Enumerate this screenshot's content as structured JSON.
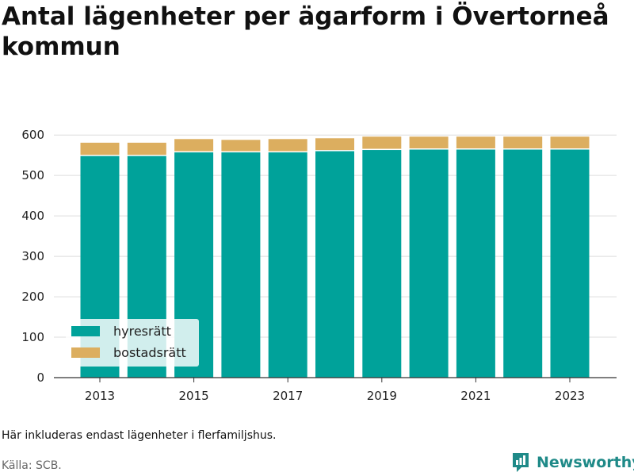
{
  "title": "Antal lägenheter per ägarform i Övertorneå kommun",
  "note": "Här inkluderas endast lägenheter i flerfamiljshus.",
  "source": "Källa: SCB.",
  "brand": {
    "name": "Newsworthy",
    "color": "#1f8a88"
  },
  "chart_data": {
    "type": "bar",
    "stacked": true,
    "categories": [
      "2013",
      "2014",
      "2015",
      "2016",
      "2017",
      "2018",
      "2019",
      "2020",
      "2021",
      "2022",
      "2023"
    ],
    "x_tick_labels": [
      "2013",
      "2015",
      "2017",
      "2019",
      "2021",
      "2023"
    ],
    "series": [
      {
        "name": "hyresrätt",
        "color": "#00a29a",
        "values": [
          548,
          548,
          557,
          557,
          557,
          560,
          563,
          564,
          564,
          564,
          564
        ]
      },
      {
        "name": "bostadsrätt",
        "color": "#dcae5f",
        "values": [
          33,
          33,
          33,
          31,
          33,
          32,
          33,
          32,
          32,
          32,
          32
        ]
      }
    ],
    "ylim": [
      0,
      620
    ],
    "yticks": [
      0,
      100,
      200,
      300,
      400,
      500,
      600
    ],
    "xlabel": "",
    "ylabel": "",
    "grid": true,
    "legend_position": "bottom-left"
  }
}
